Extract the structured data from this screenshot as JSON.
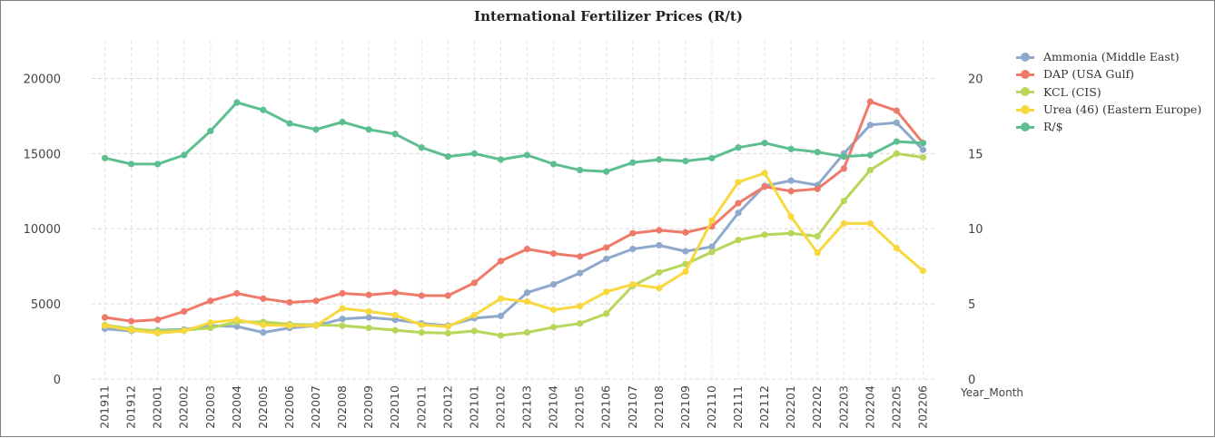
{
  "chart_data": {
    "type": "line",
    "title": "International Fertilizer Prices (R/t)",
    "xlabel": "Year_Month",
    "ylabel": "",
    "y2label": "",
    "ylim": [
      0,
      22500
    ],
    "y2lim": [
      0,
      22.5
    ],
    "yticks": [
      0,
      5000,
      10000,
      15000,
      20000
    ],
    "y2ticks": [
      0,
      5,
      10,
      15,
      20
    ],
    "grid": true,
    "legend_position": "right",
    "categories": [
      "201911",
      "201912",
      "202001",
      "202002",
      "202003",
      "202004",
      "202005",
      "202006",
      "202007",
      "202008",
      "202009",
      "202010",
      "202011",
      "202012",
      "202101",
      "202102",
      "202103",
      "202104",
      "202105",
      "202106",
      "202107",
      "202108",
      "202109",
      "202110",
      "202111",
      "202112",
      "202201",
      "202202",
      "202203",
      "202204",
      "202205",
      "202206"
    ],
    "series": [
      {
        "name": "Ammonia (Middle East)",
        "axis": "left",
        "color": "#8ea9cc",
        "values": [
          3350,
          3200,
          3250,
          3300,
          3550,
          3500,
          3100,
          3400,
          3550,
          4000,
          4100,
          3950,
          3700,
          3550,
          4050,
          4200,
          5750,
          6300,
          7050,
          8000,
          8650,
          8900,
          8500,
          8800,
          11050,
          12850,
          13200,
          12900,
          15000,
          16900,
          17050,
          15250
        ]
      },
      {
        "name": "DAP (USA Gulf)",
        "axis": "left",
        "color": "#f07a6a",
        "values": [
          4100,
          3850,
          3950,
          4500,
          5200,
          5700,
          5350,
          5100,
          5200,
          5700,
          5600,
          5750,
          5550,
          5550,
          6400,
          7850,
          8650,
          8350,
          8150,
          8750,
          9700,
          9900,
          9750,
          10150,
          11700,
          12800,
          12500,
          12650,
          14000,
          18450,
          17850,
          15700
        ]
      },
      {
        "name": "KCL (CIS)",
        "axis": "left",
        "color": "#b7d65a",
        "values": [
          3600,
          3350,
          3200,
          3250,
          3400,
          3800,
          3800,
          3650,
          3600,
          3550,
          3400,
          3250,
          3100,
          3050,
          3200,
          2900,
          3100,
          3450,
          3700,
          4350,
          6200,
          7100,
          7650,
          8450,
          9250,
          9600,
          9700,
          9500,
          11850,
          13900,
          15000,
          14750
        ]
      },
      {
        "name": "Urea (46) (Eastern Europe)",
        "axis": "left",
        "color": "#f7d83e",
        "values": [
          3550,
          3250,
          3050,
          3200,
          3750,
          3950,
          3600,
          3550,
          3550,
          4700,
          4500,
          4250,
          3600,
          3500,
          4250,
          5350,
          5150,
          4600,
          4850,
          5800,
          6300,
          6050,
          7150,
          10550,
          13100,
          13700,
          10800,
          8400,
          10350,
          10350,
          8700,
          7200
        ]
      },
      {
        "name": "R/$",
        "axis": "right",
        "color": "#5dbf90",
        "values": [
          14.7,
          14.3,
          14.3,
          14.9,
          16.5,
          18.4,
          17.9,
          17.0,
          16.6,
          17.1,
          16.6,
          16.3,
          15.4,
          14.8,
          15.0,
          14.6,
          14.9,
          14.3,
          13.9,
          13.8,
          14.4,
          14.6,
          14.5,
          14.7,
          15.4,
          15.7,
          15.3,
          15.1,
          14.8,
          14.9,
          15.8,
          15.7
        ]
      }
    ]
  }
}
